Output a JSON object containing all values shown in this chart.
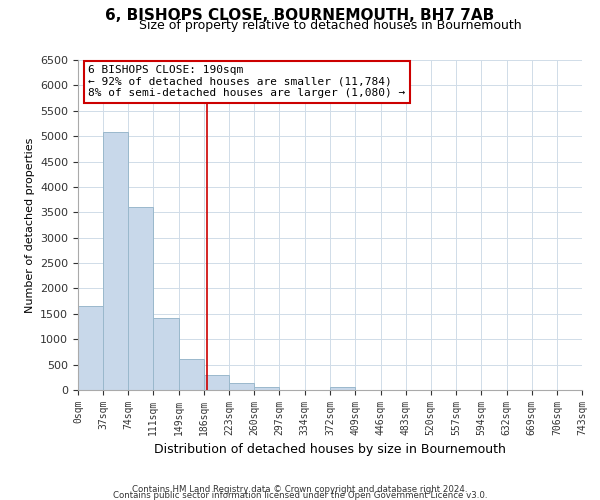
{
  "title": "6, BISHOPS CLOSE, BOURNEMOUTH, BH7 7AB",
  "subtitle": "Size of property relative to detached houses in Bournemouth",
  "xlabel": "Distribution of detached houses by size in Bournemouth",
  "ylabel": "Number of detached properties",
  "bar_edges": [
    0,
    37,
    74,
    111,
    149,
    186,
    223,
    260,
    297,
    334,
    372,
    409,
    446,
    483,
    520,
    557,
    594,
    632,
    669,
    706,
    743
  ],
  "bar_heights": [
    1650,
    5080,
    3600,
    1420,
    620,
    295,
    145,
    60,
    0,
    0,
    50,
    0,
    0,
    0,
    0,
    0,
    0,
    0,
    0,
    0
  ],
  "bar_color": "#c8d8ea",
  "bar_edge_color": "#9ab8cc",
  "property_line_x": 190,
  "property_line_color": "#cc0000",
  "ylim": [
    0,
    6500
  ],
  "annotation_text_line1": "6 BISHOPS CLOSE: 190sqm",
  "annotation_text_line2": "← 92% of detached houses are smaller (11,784)",
  "annotation_text_line3": "8% of semi-detached houses are larger (1,080) →",
  "footer_line1": "Contains HM Land Registry data © Crown copyright and database right 2024.",
  "footer_line2": "Contains public sector information licensed under the Open Government Licence v3.0.",
  "tick_labels": [
    "0sqm",
    "37sqm",
    "74sqm",
    "111sqm",
    "149sqm",
    "186sqm",
    "223sqm",
    "260sqm",
    "297sqm",
    "334sqm",
    "372sqm",
    "409sqm",
    "446sqm",
    "483sqm",
    "520sqm",
    "557sqm",
    "594sqm",
    "632sqm",
    "669sqm",
    "706sqm",
    "743sqm"
  ],
  "yticks": [
    0,
    500,
    1000,
    1500,
    2000,
    2500,
    3000,
    3500,
    4000,
    4500,
    5000,
    5500,
    6000,
    6500
  ],
  "background_color": "#ffffff",
  "grid_color": "#d0dce8"
}
